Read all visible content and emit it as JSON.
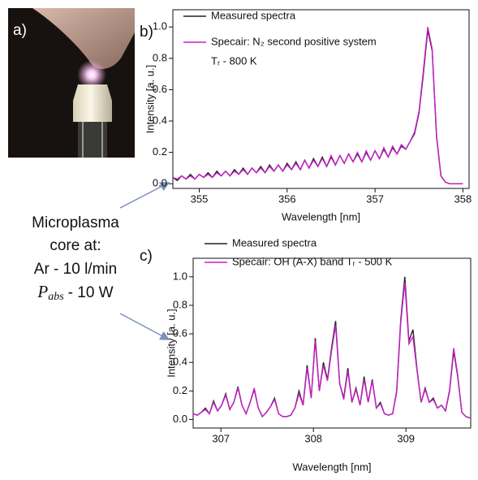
{
  "figure": {
    "panel_a": "a)",
    "conditions": [
      "Microplasma",
      "core at:",
      "Ar - 10 l/min"
    ],
    "power": {
      "symbol": "P",
      "subscript": "abs",
      "text": "- 10 W"
    }
  },
  "chart_data": [
    {
      "type": "line",
      "label": "b)",
      "xlabel": "Wavelength [nm]",
      "ylabel": "Intensity [a. u.]",
      "xlim": [
        354.7,
        358.07
      ],
      "ylim": [
        -0.03,
        1.11
      ],
      "xticks": [
        355,
        356,
        357,
        358
      ],
      "yticks": [
        {
          "value": 0,
          "label": "0.0"
        },
        0.2,
        0.4,
        0.6,
        0.8,
        {
          "value": 1,
          "label": "1.0"
        }
      ],
      "annotation": "Tᵣ - 800 K",
      "x": [
        354.7,
        354.75,
        354.8,
        354.85,
        354.9,
        354.95,
        355.0,
        355.05,
        355.1,
        355.15,
        355.2,
        355.25,
        355.3,
        355.35,
        355.4,
        355.45,
        355.5,
        355.55,
        355.6,
        355.65,
        355.7,
        355.75,
        355.8,
        355.85,
        355.9,
        355.95,
        356.0,
        356.05,
        356.1,
        356.15,
        356.2,
        356.25,
        356.3,
        356.35,
        356.4,
        356.45,
        356.5,
        356.55,
        356.6,
        356.65,
        356.7,
        356.75,
        356.8,
        356.85,
        356.9,
        356.95,
        357.0,
        357.05,
        357.1,
        357.15,
        357.2,
        357.25,
        357.3,
        357.35,
        357.4,
        357.45,
        357.5,
        357.55,
        357.6,
        357.65,
        357.7,
        357.75,
        357.8,
        357.85,
        357.9,
        357.95,
        358.0
      ],
      "series": [
        {
          "name": "Measured spectra",
          "color": "#222222",
          "values": [
            0.04,
            0.02,
            0.05,
            0.03,
            0.06,
            0.03,
            0.06,
            0.04,
            0.07,
            0.04,
            0.08,
            0.05,
            0.08,
            0.05,
            0.09,
            0.06,
            0.1,
            0.06,
            0.1,
            0.07,
            0.11,
            0.07,
            0.12,
            0.08,
            0.12,
            0.08,
            0.13,
            0.09,
            0.14,
            0.09,
            0.15,
            0.1,
            0.16,
            0.11,
            0.17,
            0.11,
            0.17,
            0.12,
            0.18,
            0.13,
            0.19,
            0.14,
            0.19,
            0.14,
            0.2,
            0.15,
            0.21,
            0.16,
            0.22,
            0.17,
            0.23,
            0.19,
            0.24,
            0.22,
            0.27,
            0.32,
            0.45,
            0.7,
            0.98,
            0.85,
            0.3,
            0.05,
            0.01,
            0.0,
            0.0,
            0.0,
            0.0
          ]
        },
        {
          "name": "Specair: N₂ second positive system",
          "color": "#c81ec8",
          "values": [
            0.04,
            0.03,
            0.05,
            0.03,
            0.05,
            0.03,
            0.06,
            0.04,
            0.06,
            0.04,
            0.07,
            0.05,
            0.08,
            0.05,
            0.08,
            0.06,
            0.09,
            0.06,
            0.1,
            0.07,
            0.1,
            0.07,
            0.11,
            0.08,
            0.12,
            0.08,
            0.12,
            0.09,
            0.13,
            0.09,
            0.15,
            0.1,
            0.15,
            0.11,
            0.16,
            0.11,
            0.18,
            0.12,
            0.18,
            0.13,
            0.19,
            0.14,
            0.2,
            0.14,
            0.21,
            0.15,
            0.21,
            0.16,
            0.23,
            0.17,
            0.24,
            0.19,
            0.25,
            0.22,
            0.27,
            0.33,
            0.46,
            0.72,
            1.0,
            0.86,
            0.31,
            0.05,
            0.01,
            0.0,
            0.0,
            0.0,
            0.0
          ]
        }
      ]
    },
    {
      "type": "line",
      "label": "c)",
      "xlabel": "Wavelength [nm]",
      "ylabel": "Intensity [a. u.]",
      "xlim": [
        306.7,
        309.7
      ],
      "ylim": [
        -0.06,
        1.13
      ],
      "xticks": [
        307,
        308,
        309
      ],
      "yticks": [
        {
          "value": 0,
          "label": "0.0"
        },
        0.2,
        0.4,
        0.6,
        0.8,
        {
          "value": 1,
          "label": "1.0"
        }
      ],
      "x": [
        306.7,
        306.744,
        306.788,
        306.832,
        306.876,
        306.92,
        306.964,
        307.008,
        307.052,
        307.096,
        307.14,
        307.184,
        307.228,
        307.272,
        307.316,
        307.36,
        307.404,
        307.448,
        307.492,
        307.536,
        307.58,
        307.624,
        307.668,
        307.712,
        307.756,
        307.8,
        307.844,
        307.888,
        307.932,
        307.976,
        308.02,
        308.064,
        308.108,
        308.152,
        308.196,
        308.24,
        308.284,
        308.328,
        308.372,
        308.416,
        308.46,
        308.504,
        308.548,
        308.592,
        308.636,
        308.68,
        308.724,
        308.768,
        308.812,
        308.856,
        308.9,
        308.944,
        308.988,
        309.032,
        309.076,
        309.12,
        309.164,
        309.208,
        309.252,
        309.296,
        309.34,
        309.384,
        309.428,
        309.472,
        309.516,
        309.56,
        309.604,
        309.648,
        309.692
      ],
      "series": [
        {
          "name": "Measured spectra",
          "color": "#222222",
          "values": [
            0.04,
            0.03,
            0.05,
            0.08,
            0.04,
            0.13,
            0.06,
            0.1,
            0.18,
            0.07,
            0.12,
            0.23,
            0.1,
            0.04,
            0.12,
            0.21,
            0.08,
            0.02,
            0.05,
            0.09,
            0.15,
            0.04,
            0.02,
            0.02,
            0.03,
            0.08,
            0.2,
            0.1,
            0.38,
            0.15,
            0.57,
            0.2,
            0.4,
            0.28,
            0.5,
            0.69,
            0.25,
            0.15,
            0.36,
            0.12,
            0.22,
            0.1,
            0.3,
            0.12,
            0.28,
            0.08,
            0.12,
            0.04,
            0.03,
            0.04,
            0.2,
            0.7,
            1.0,
            0.55,
            0.63,
            0.35,
            0.12,
            0.22,
            0.12,
            0.15,
            0.08,
            0.1,
            0.06,
            0.2,
            0.48,
            0.3,
            0.05,
            0.02,
            0.01
          ]
        },
        {
          "name": "Specair: OH (A-X) band Tᵣ - 500 K",
          "color": "#c81ec8",
          "values": [
            0.04,
            0.03,
            0.05,
            0.07,
            0.04,
            0.12,
            0.06,
            0.1,
            0.17,
            0.07,
            0.12,
            0.22,
            0.1,
            0.04,
            0.12,
            0.22,
            0.08,
            0.02,
            0.05,
            0.09,
            0.14,
            0.04,
            0.02,
            0.02,
            0.03,
            0.08,
            0.18,
            0.1,
            0.36,
            0.15,
            0.55,
            0.2,
            0.38,
            0.27,
            0.48,
            0.66,
            0.25,
            0.14,
            0.34,
            0.12,
            0.21,
            0.1,
            0.28,
            0.12,
            0.27,
            0.08,
            0.11,
            0.04,
            0.03,
            0.04,
            0.19,
            0.68,
            0.96,
            0.53,
            0.58,
            0.34,
            0.12,
            0.21,
            0.12,
            0.14,
            0.08,
            0.1,
            0.06,
            0.21,
            0.5,
            0.31,
            0.05,
            0.02,
            0.01
          ]
        }
      ]
    }
  ]
}
